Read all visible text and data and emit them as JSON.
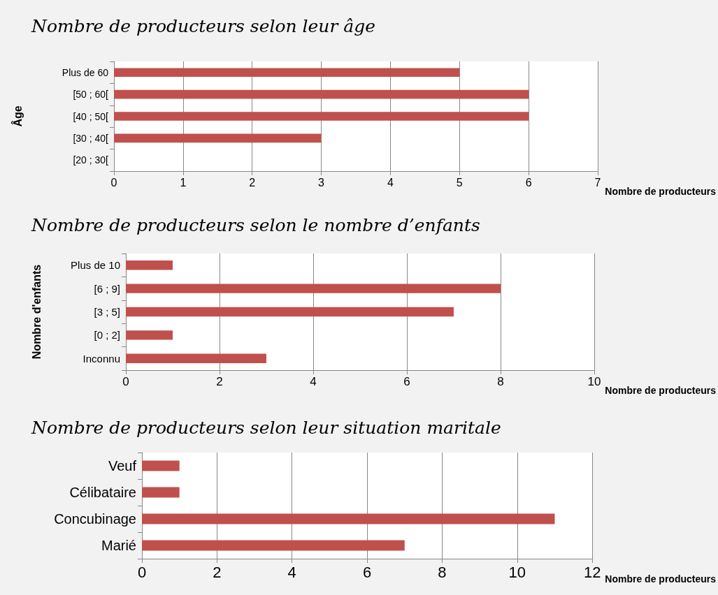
{
  "chart_data": [
    {
      "type": "bar",
      "orientation": "horizontal",
      "title": "Nombre de producteurs selon leur âge",
      "xlabel": "Nombre de producteurs",
      "ylabel": "Âge",
      "categories": [
        "Plus de 60",
        "[50 ; 60[",
        "[40 ; 50[",
        "[30 ; 40[",
        "[20 ; 30["
      ],
      "values": [
        5,
        6,
        6,
        3,
        0
      ],
      "color": "#c0504d",
      "xlim": [
        0,
        7
      ],
      "xticks": [
        0,
        1,
        2,
        3,
        4,
        5,
        6,
        7
      ],
      "grid": "x"
    },
    {
      "type": "bar",
      "orientation": "horizontal",
      "title": "Nombre de producteurs selon le nombre d’enfants",
      "xlabel": "Nombre de producteurs",
      "ylabel": "Nombre d'enfants",
      "categories": [
        "Plus de 10",
        "[6 ; 9]",
        "[3 ; 5]",
        "[0 ; 2]",
        "Inconnu"
      ],
      "values": [
        1,
        8,
        7,
        1,
        3
      ],
      "color": "#c0504d",
      "xlim": [
        0,
        10
      ],
      "xticks": [
        0,
        2,
        4,
        6,
        8,
        10
      ],
      "grid": "x"
    },
    {
      "type": "bar",
      "orientation": "horizontal",
      "title": "Nombre de producteurs selon leur situation maritale",
      "xlabel": "Nombre de producteurs",
      "categories": [
        "Veuf",
        "Célibataire",
        "Concubinage",
        "Marié"
      ],
      "values": [
        1,
        1,
        11,
        7
      ],
      "color": "#c0504d",
      "xlim": [
        0,
        12
      ],
      "xticks": [
        0,
        2,
        4,
        6,
        8,
        10,
        12
      ],
      "grid": "x"
    }
  ]
}
